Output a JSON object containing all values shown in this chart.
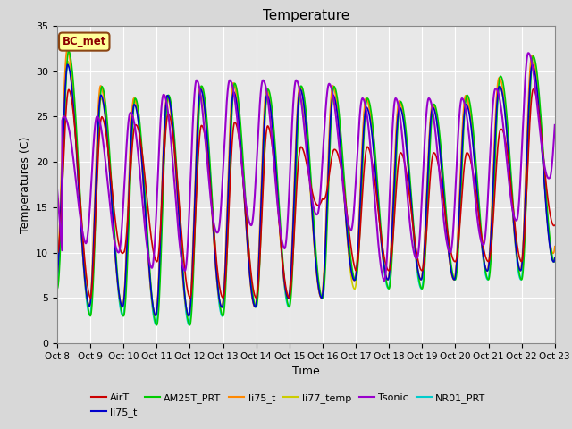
{
  "title": "Temperature",
  "xlabel": "Time",
  "ylabel": "Temperatures (C)",
  "ylim": [
    0,
    35
  ],
  "xlim": [
    0,
    15
  ],
  "background_color": "#d8d8d8",
  "plot_bg_color": "#e8e8e8",
  "grid_color": "white",
  "annotation_text": "BC_met",
  "annotation_box_color": "#ffff99",
  "annotation_box_edge": "#8B4513",
  "x_tick_labels": [
    "Oct 8",
    "Oct 9",
    "Oct 10",
    "Oct 11",
    "Oct 12",
    "Oct 13",
    "Oct 14",
    "Oct 15",
    "Oct 16",
    "Oct 17",
    "Oct 18",
    "Oct 19",
    "Oct 20",
    "Oct 21",
    "Oct 22",
    "Oct 23"
  ],
  "series": {
    "AirT": {
      "color": "#cc0000",
      "lw": 1.2
    },
    "li75_t_1": {
      "color": "#0000cc",
      "lw": 1.2
    },
    "AM25T_PRT": {
      "color": "#00cc00",
      "lw": 1.2
    },
    "li75_t_2": {
      "color": "#ff8800",
      "lw": 1.2
    },
    "li77_temp": {
      "color": "#cccc00",
      "lw": 1.2
    },
    "Tsonic": {
      "color": "#9900cc",
      "lw": 1.5
    },
    "NR01_PRT": {
      "color": "#00cccc",
      "lw": 1.2
    }
  },
  "legend_entries": [
    {
      "label": "AirT",
      "color": "#cc0000"
    },
    {
      "label": "li75_t",
      "color": "#0000cc"
    },
    {
      "label": "AM25T_PRT",
      "color": "#00cc00"
    },
    {
      "label": "li75_t",
      "color": "#ff8800"
    },
    {
      "label": "li77_temp",
      "color": "#cccc00"
    },
    {
      "label": "Tsonic",
      "color": "#9900cc"
    },
    {
      "label": "NR01_PRT",
      "color": "#00cccc"
    }
  ]
}
